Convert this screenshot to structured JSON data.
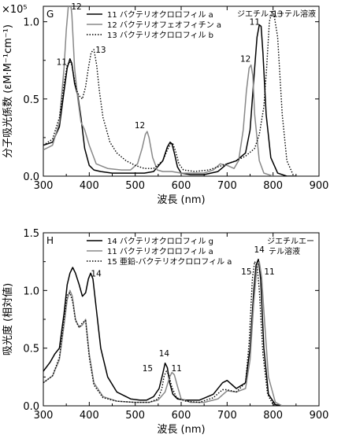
{
  "chart_data": [
    {
      "type": "line",
      "panel_label": "G",
      "multiplier_label": "×10⁵",
      "solvent_note": "ジエチルエーテル溶液",
      "xlabel": "波長 (nm)",
      "ylabel": "分子吸光係数 (εM·M⁻¹cm⁻¹)",
      "xlim": [
        300,
        900
      ],
      "ylim": [
        0,
        1.1
      ],
      "x_ticks": [
        "300",
        "400",
        "500",
        "600",
        "700",
        "800",
        "900"
      ],
      "y_ticks": [
        "0.0",
        "0.5",
        "1.0"
      ],
      "series": [
        {
          "name": "11 バクテリオクロロフィル a",
          "color": "#000000",
          "dash": "solid",
          "x": [
            300,
            320,
            335,
            345,
            352,
            358,
            362,
            368,
            375,
            382,
            390,
            400,
            410,
            425,
            450,
            480,
            500,
            520,
            540,
            560,
            570,
            576,
            580,
            585,
            592,
            600,
            620,
            650,
            680,
            700,
            720,
            740,
            750,
            760,
            765,
            770,
            774,
            778,
            785,
            795,
            810,
            830,
            850
          ],
          "y": [
            0.2,
            0.22,
            0.32,
            0.55,
            0.7,
            0.76,
            0.73,
            0.6,
            0.52,
            0.38,
            0.18,
            0.07,
            0.04,
            0.03,
            0.02,
            0.02,
            0.02,
            0.02,
            0.03,
            0.1,
            0.19,
            0.22,
            0.21,
            0.15,
            0.06,
            0.02,
            0.01,
            0.01,
            0.03,
            0.08,
            0.1,
            0.15,
            0.3,
            0.7,
            0.9,
            0.98,
            0.97,
            0.8,
            0.4,
            0.12,
            0.02,
            0.0,
            0.0
          ]
        },
        {
          "name": "12 バクテリオフェオフィチン a",
          "color": "#888888",
          "dash": "solid",
          "x": [
            300,
            320,
            335,
            345,
            350,
            355,
            358,
            362,
            368,
            375,
            382,
            390,
            400,
            415,
            440,
            470,
            490,
            505,
            515,
            522,
            526,
            530,
            538,
            548,
            560,
            580,
            600,
            620,
            650,
            670,
            685,
            700,
            715,
            725,
            735,
            742,
            748,
            752,
            756,
            760,
            770,
            780,
            800
          ],
          "y": [
            0.17,
            0.2,
            0.35,
            0.7,
            0.95,
            1.12,
            1.15,
            1.05,
            0.7,
            0.5,
            0.35,
            0.3,
            0.2,
            0.08,
            0.05,
            0.04,
            0.04,
            0.08,
            0.18,
            0.27,
            0.29,
            0.25,
            0.12,
            0.04,
            0.03,
            0.03,
            0.02,
            0.02,
            0.02,
            0.04,
            0.08,
            0.07,
            0.05,
            0.1,
            0.3,
            0.55,
            0.7,
            0.72,
            0.65,
            0.4,
            0.1,
            0.02,
            0.0
          ]
        },
        {
          "name": "13 バクテリオクロロフィル b",
          "color": "#000000",
          "dash": "dotted",
          "x": [
            300,
            320,
            335,
            345,
            352,
            357,
            362,
            368,
            372,
            378,
            385,
            392,
            398,
            404,
            410,
            416,
            422,
            430,
            445,
            460,
            480,
            500,
            520,
            540,
            560,
            570,
            577,
            582,
            588,
            595,
            605,
            630,
            660,
            680,
            700,
            720,
            740,
            760,
            770,
            780,
            786,
            792,
            797,
            802,
            810,
            820,
            830,
            845
          ],
          "y": [
            0.2,
            0.24,
            0.38,
            0.6,
            0.72,
            0.74,
            0.72,
            0.62,
            0.56,
            0.52,
            0.5,
            0.58,
            0.7,
            0.8,
            0.82,
            0.72,
            0.55,
            0.38,
            0.22,
            0.15,
            0.1,
            0.07,
            0.05,
            0.05,
            0.1,
            0.17,
            0.21,
            0.21,
            0.16,
            0.08,
            0.04,
            0.03,
            0.04,
            0.06,
            0.08,
            0.1,
            0.13,
            0.18,
            0.27,
            0.45,
            0.7,
            1.0,
            1.06,
            1.05,
            0.9,
            0.4,
            0.1,
            0.0
          ]
        }
      ],
      "annotations": [
        {
          "text": "12",
          "x": 372,
          "y": 1.08
        },
        {
          "text": "11",
          "x": 340,
          "y": 0.72
        },
        {
          "text": "13",
          "x": 425,
          "y": 0.8
        },
        {
          "text": "12",
          "x": 510,
          "y": 0.31
        },
        {
          "text": "12",
          "x": 740,
          "y": 0.74
        },
        {
          "text": "11",
          "x": 760,
          "y": 0.98
        },
        {
          "text": "13",
          "x": 810,
          "y": 1.03
        }
      ]
    },
    {
      "type": "line",
      "panel_label": "H",
      "solvent_note_line1": "ジエチルエー",
      "solvent_note_line2": "テル溶液",
      "xlabel": "波長 (nm)",
      "ylabel": "吸光度 (相対値)",
      "xlim": [
        300,
        900
      ],
      "ylim": [
        0,
        1.5
      ],
      "x_ticks": [
        "300",
        "400",
        "500",
        "600",
        "700",
        "800",
        "900"
      ],
      "y_ticks": [
        "0.0",
        "0.5",
        "1.0",
        "1.5"
      ],
      "series": [
        {
          "name": "14 バクテリオクロロフィル g",
          "color": "#000000",
          "dash": "solid",
          "x": [
            300,
            315,
            325,
            335,
            345,
            352,
            358,
            364,
            370,
            378,
            385,
            392,
            398,
            403,
            408,
            415,
            425,
            440,
            460,
            490,
            510,
            525,
            540,
            552,
            560,
            565,
            570,
            575,
            582,
            592,
            610,
            640,
            670,
            690,
            700,
            720,
            740,
            750,
            758,
            763,
            768,
            773,
            780,
            790,
            805,
            820
          ],
          "y": [
            0.3,
            0.38,
            0.45,
            0.5,
            0.8,
            1.05,
            1.15,
            1.2,
            1.15,
            1.05,
            0.95,
            0.98,
            1.1,
            1.15,
            1.1,
            0.85,
            0.5,
            0.25,
            0.12,
            0.06,
            0.05,
            0.05,
            0.08,
            0.15,
            0.28,
            0.37,
            0.33,
            0.2,
            0.1,
            0.06,
            0.05,
            0.05,
            0.1,
            0.2,
            0.22,
            0.15,
            0.2,
            0.5,
            1.0,
            1.22,
            1.27,
            1.1,
            0.5,
            0.1,
            0.01,
            0.0
          ]
        },
        {
          "name": "11 バクテリオクロロフィル a",
          "color": "#888888",
          "dash": "solid",
          "x": [
            300,
            320,
            335,
            345,
            352,
            358,
            363,
            370,
            378,
            385,
            392,
            400,
            410,
            430,
            460,
            500,
            530,
            550,
            565,
            575,
            580,
            585,
            592,
            600,
            620,
            650,
            680,
            700,
            720,
            740,
            750,
            758,
            765,
            770,
            775,
            782,
            790,
            805,
            820
          ],
          "y": [
            0.2,
            0.26,
            0.4,
            0.7,
            0.92,
            1.0,
            0.95,
            0.75,
            0.68,
            0.7,
            0.75,
            0.45,
            0.2,
            0.08,
            0.04,
            0.03,
            0.03,
            0.05,
            0.12,
            0.25,
            0.29,
            0.27,
            0.17,
            0.06,
            0.03,
            0.03,
            0.06,
            0.13,
            0.12,
            0.15,
            0.4,
            0.9,
            1.22,
            1.25,
            1.12,
            0.7,
            0.25,
            0.03,
            0.0
          ]
        },
        {
          "name": "15 亜鉛-バクテリオクロロフィル a",
          "color": "#000000",
          "dash": "dotted",
          "x": [
            300,
            320,
            335,
            345,
            352,
            358,
            364,
            370,
            378,
            385,
            392,
            400,
            410,
            430,
            460,
            500,
            530,
            550,
            558,
            563,
            568,
            573,
            580,
            590,
            610,
            640,
            670,
            690,
            700,
            720,
            740,
            748,
            755,
            760,
            765,
            770,
            778,
            788,
            800,
            815
          ],
          "y": [
            0.2,
            0.26,
            0.42,
            0.75,
            0.96,
            0.98,
            0.9,
            0.74,
            0.68,
            0.72,
            0.74,
            0.42,
            0.18,
            0.07,
            0.04,
            0.03,
            0.03,
            0.06,
            0.15,
            0.26,
            0.3,
            0.27,
            0.16,
            0.07,
            0.04,
            0.03,
            0.07,
            0.14,
            0.14,
            0.12,
            0.2,
            0.55,
            1.1,
            1.25,
            1.22,
            1.0,
            0.45,
            0.1,
            0.01,
            0.0
          ]
        }
      ],
      "annotations": [
        {
          "text": "14",
          "x": 415,
          "y": 1.12
        },
        {
          "text": "14",
          "x": 563,
          "y": 0.43
        },
        {
          "text": "15",
          "x": 527,
          "y": 0.3
        },
        {
          "text": "11",
          "x": 590,
          "y": 0.3
        },
        {
          "text": "14",
          "x": 770,
          "y": 1.33
        },
        {
          "text": "15",
          "x": 742,
          "y": 1.14
        },
        {
          "text": "11",
          "x": 792,
          "y": 1.14
        }
      ]
    }
  ]
}
